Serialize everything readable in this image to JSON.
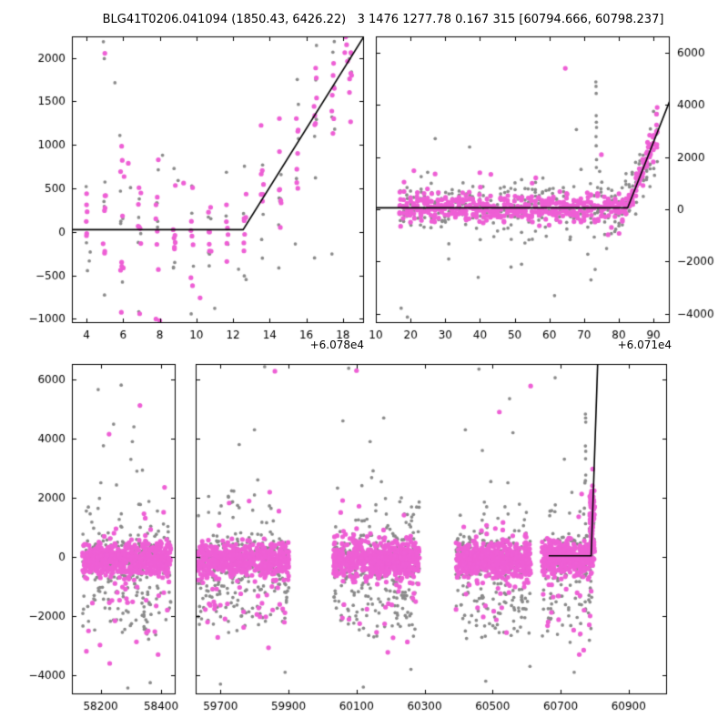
{
  "figure": {
    "title": "BLG41T0206.041094 (1850.43, 6426.22)   3 1476 1277.78 0.167 315 [60794.666, 60798.237]",
    "background": "#ffffff",
    "colors": {
      "points_primary": "#ee5fd5",
      "points_secondary": "#8a8a8a",
      "model_line": "#000000",
      "frame": "#000000"
    },
    "marker_radius": {
      "primary": 2.6,
      "secondary": 1.85
    },
    "offsets": {
      "top_left": "+6.078e4",
      "top_right": "+6.071e4"
    }
  },
  "chart_data": {
    "type": "scatter",
    "title": "BLG41T0206.041094 (1850.43, 6426.22)   3 1476 1277.78 0.167 315 [60794.666, 60798.237]",
    "seed": 11,
    "series": [
      {
        "name": "flux-primary",
        "color": "#ee5fd5"
      },
      {
        "name": "flux-secondary",
        "color": "#8a8a8a"
      },
      {
        "name": "broken-line-model",
        "color": "#000000"
      }
    ],
    "season_mix": {
      "m": [
        [
          0.9,
          -80,
          300
        ],
        [
          0.1,
          -700,
          1050
        ]
      ],
      "g": [
        [
          0.55,
          -30,
          360
        ],
        [
          0.3,
          -1450,
          650
        ],
        [
          0.15,
          800,
          1050
        ]
      ]
    },
    "panels": [
      {
        "id": "top-left-zoom",
        "frame": [
          79,
          40,
          400,
          355
        ],
        "xlim": [
          60783.2,
          60799.15
        ],
        "ylim": [
          -1049,
          2246
        ],
        "xticks": {
          "values": [
            60784,
            60786,
            60788,
            60790,
            60792,
            60794,
            60796,
            60798
          ],
          "labels": [
            "4",
            "6",
            "8",
            "10",
            "12",
            "14",
            "16",
            "18"
          ]
        },
        "yticks": {
          "values": [
            -1000,
            -500,
            0,
            500,
            1000,
            1500,
            2000
          ],
          "labels": [
            "−1000",
            "−500",
            "0",
            "500",
            "1000",
            "1500",
            "2000"
          ],
          "side": "left"
        },
        "model": [
          [
            60783.2,
            25
          ],
          [
            60792.55,
            25
          ],
          [
            60799.15,
            2246
          ]
        ],
        "clusters": [
          {
            "mode": "nights",
            "x0": 60783.05,
            "x1": 60798.45,
            "step": 0.96,
            "xjit": 0.08,
            "n_m": 7,
            "n_g": 5,
            "sig_m": 300,
            "sig_g": 430,
            "follow": true,
            "out_p": 0.07,
            "out_mult": 3.0
          }
        ],
        "extras": [
          [
            60784.92,
            2185,
            "g"
          ],
          [
            60785.0,
            2052,
            "m"
          ],
          [
            60784.97,
            1990,
            "g"
          ],
          [
            60785.55,
            1713,
            "g"
          ],
          [
            60785.82,
            1108,
            "g"
          ],
          [
            60785.95,
            822,
            "m"
          ],
          [
            60786.28,
            788,
            "m"
          ],
          [
            60787.92,
            828,
            "m"
          ],
          [
            60788.15,
            880,
            "g"
          ],
          [
            60786.05,
            635,
            "m"
          ],
          [
            60786.4,
            508,
            "g"
          ],
          [
            60789.0,
            590,
            "g"
          ],
          [
            60789.3,
            560,
            "m"
          ],
          [
            60783.05,
            238,
            "m"
          ],
          [
            60783.1,
            -668,
            "m"
          ],
          [
            60783.08,
            -872,
            "m"
          ],
          [
            60783.12,
            -1012,
            "m"
          ],
          [
            60785.9,
            -925,
            "m"
          ],
          [
            60786.9,
            -942,
            "m"
          ],
          [
            60784.2,
            -232,
            "g"
          ],
          [
            60784.15,
            -335,
            "g"
          ],
          [
            60788.0,
            -1020,
            "m"
          ],
          [
            60791.0,
            -880,
            "g"
          ],
          [
            60790.2,
            -760,
            "m"
          ],
          [
            60792.3,
            -430,
            "g"
          ],
          [
            60794.5,
            -415,
            "g"
          ],
          [
            60796.45,
            -300,
            "g"
          ],
          [
            60797.4,
            -255,
            "g"
          ],
          [
            60795.4,
            -140,
            "g"
          ],
          [
            60796.5,
            620,
            "g"
          ],
          [
            60798.15,
            2240,
            "m"
          ],
          [
            60798.2,
            2150,
            "m"
          ],
          [
            60798.1,
            2060,
            "m"
          ],
          [
            60798.25,
            1960,
            "m"
          ],
          [
            60797.5,
            1300,
            "m"
          ],
          [
            60797.55,
            1180,
            "g"
          ]
        ]
      },
      {
        "id": "top-right-season",
        "frame": [
          413,
          40,
          736,
          355
        ],
        "xlim": [
          60720,
          60804.7
        ],
        "ylim": [
          -4348,
          6609
        ],
        "xticks": {
          "values": [
            60720,
            60730,
            60740,
            60750,
            60760,
            60770,
            60780,
            60790,
            60800
          ],
          "labels": [
            "10",
            "20",
            "30",
            "40",
            "50",
            "60",
            "70",
            "80",
            "90"
          ]
        },
        "yticks": {
          "values": [
            -4000,
            -2000,
            0,
            2000,
            4000,
            6000
          ],
          "labels": [
            "−4000",
            "−2000",
            "0",
            "2000",
            "4000",
            "6000"
          ],
          "side": "right"
        },
        "model": [
          [
            60720,
            55
          ],
          [
            60792.55,
            55
          ],
          [
            60804.7,
            4150
          ]
        ],
        "clusters": [
          {
            "mode": "nights",
            "x0": 60727.0,
            "x1": 60801.0,
            "step": 1.0,
            "xjit": 0.15,
            "n_m": 7,
            "n_g": 5,
            "sig_m": 270,
            "sig_g": 520,
            "follow": true,
            "out_p": 0.06,
            "out_mult": 3.2
          }
        ],
        "extras": [
          [
            60774.6,
            5390,
            "m"
          ],
          [
            60783.4,
            4870,
            "g"
          ],
          [
            60783.45,
            4700,
            "g"
          ],
          [
            60783.5,
            4430,
            "g"
          ],
          [
            60783.5,
            3580,
            "g"
          ],
          [
            60783.55,
            3330,
            "g"
          ],
          [
            60783.6,
            3130,
            "g"
          ],
          [
            60783.45,
            2780,
            "g"
          ],
          [
            60783.5,
            2430,
            "g"
          ],
          [
            60783.6,
            1900,
            "g"
          ],
          [
            60783.55,
            1600,
            "g"
          ],
          [
            60785.0,
            2090,
            "m"
          ],
          [
            60784.5,
            1450,
            "g"
          ],
          [
            60727.3,
            -3780,
            "g"
          ],
          [
            60729.1,
            -4120,
            "g"
          ],
          [
            60749.5,
            -2600,
            "g"
          ],
          [
            60771.5,
            -3300,
            "g"
          ],
          [
            60782.0,
            -2700,
            "g"
          ],
          [
            60783.2,
            -2300,
            "g"
          ],
          [
            60786.5,
            -1500,
            "g"
          ],
          [
            60762.0,
            -2100,
            "g"
          ],
          [
            60741.0,
            -1900,
            "g"
          ],
          [
            60798.3,
            2560,
            "m"
          ],
          [
            60798.5,
            2380,
            "m"
          ],
          [
            60798.2,
            2200,
            "m"
          ],
          [
            60799.0,
            870,
            "g"
          ],
          [
            60800.3,
            1300,
            "g"
          ],
          [
            60795.5,
            1020,
            "m"
          ],
          [
            60777.8,
            3050,
            "g"
          ]
        ]
      },
      {
        "id": "bottom-left-history",
        "frame": [
          79,
          400,
          193,
          763
        ],
        "xlim": [
          58105,
          58448
        ],
        "ylim": [
          -4646,
          6523
        ],
        "xticks": {
          "values": [
            58200,
            58400
          ],
          "labels": [
            "58200",
            "58400"
          ]
        },
        "yticks": {
          "values": [
            -4000,
            -2000,
            0,
            2000,
            4000,
            6000
          ],
          "labels": [
            "−4000",
            "−2000",
            "0",
            "2000",
            "4000",
            "6000"
          ],
          "side": "left"
        },
        "model": [],
        "clusters": [
          {
            "mode": "season",
            "x0": 58140,
            "x1": 58432,
            "n_m": 560,
            "n_g": 340
          }
        ],
        "extras": [
          [
            58192,
            5660,
            "g"
          ],
          [
            58268,
            5810,
            "g"
          ],
          [
            58228,
            4150,
            "m"
          ],
          [
            58243,
            4490,
            "g"
          ],
          [
            58330,
            5120,
            "m"
          ],
          [
            58310,
            4400,
            "g"
          ],
          [
            58305,
            3900,
            "g"
          ],
          [
            58300,
            3300,
            "g"
          ],
          [
            58320,
            2900,
            "g"
          ],
          [
            58364,
            -4250,
            "g"
          ],
          [
            58290,
            -4430,
            "g"
          ],
          [
            58230,
            -3600,
            "m"
          ],
          [
            58390,
            -3300,
            "m"
          ],
          [
            58160,
            -2500,
            "m"
          ]
        ]
      },
      {
        "id": "bottom-right-history",
        "frame": [
          215,
          400,
          733,
          763
        ],
        "xlim": [
          59627,
          61013
        ],
        "ylim": [
          -4646,
          6523
        ],
        "xticks": {
          "values": [
            59700,
            59900,
            60100,
            60300,
            60500,
            60700,
            60900
          ],
          "labels": [
            "59700",
            "59900",
            "60100",
            "60300",
            "60500",
            "60700",
            "60900"
          ]
        },
        "yticks": {
          "values": [
            -4000,
            -2000,
            0,
            2000,
            4000,
            6000
          ],
          "labels": [],
          "side": "none"
        },
        "model": [
          [
            60665,
            40
          ],
          [
            60790,
            40
          ],
          [
            60809,
            6520
          ]
        ],
        "clusters": [
          {
            "mode": "season",
            "x0": 59632,
            "x1": 59902,
            "n_m": 560,
            "n_g": 340
          },
          {
            "mode": "season",
            "x0": 60032,
            "x1": 60285,
            "n_m": 600,
            "n_g": 360
          },
          {
            "mode": "season",
            "x0": 60392,
            "x1": 60612,
            "n_m": 540,
            "n_g": 330
          },
          {
            "mode": "season",
            "x0": 60645,
            "x1": 60790,
            "n_m": 340,
            "n_g": 200
          },
          {
            "mode": "season",
            "x0": 60786,
            "x1": 60800,
            "n_m": 90,
            "n_g": 20,
            "m_mix": [
              [
                0.8,
                1200,
                650
              ],
              [
                0.2,
                300,
                350
              ]
            ],
            "g_mix": [
              [
                1.0,
                900,
                900
              ]
            ]
          }
        ],
        "extras": [
          [
            59860,
            6280,
            "m"
          ],
          [
            59830,
            6430,
            "g"
          ],
          [
            60077,
            6380,
            "g"
          ],
          [
            60100,
            6300,
            "m"
          ],
          [
            60612,
            5780,
            "m"
          ],
          [
            60550,
            5350,
            "g"
          ],
          [
            60684,
            6060,
            "g"
          ],
          [
            60460,
            6350,
            "g"
          ],
          [
            60773,
            4830,
            "g"
          ],
          [
            60773.5,
            4700,
            "g"
          ],
          [
            60774,
            4560,
            "g"
          ],
          [
            60773,
            3750,
            "g"
          ],
          [
            60774,
            3570,
            "g"
          ],
          [
            60773.5,
            3320,
            "g"
          ],
          [
            60774,
            2770,
            "g"
          ],
          [
            60773,
            2580,
            "g"
          ],
          [
            60762,
            2130,
            "m"
          ],
          [
            60770,
            1650,
            "g"
          ],
          [
            60768,
            1450,
            "g"
          ],
          [
            59800,
            4300,
            "g"
          ],
          [
            59755,
            3800,
            "g"
          ],
          [
            60060,
            4600,
            "g"
          ],
          [
            60140,
            3900,
            "g"
          ],
          [
            60180,
            4700,
            "g"
          ],
          [
            60420,
            4300,
            "g"
          ],
          [
            60470,
            3600,
            "g"
          ],
          [
            60520,
            4900,
            "m"
          ],
          [
            60560,
            4200,
            "g"
          ],
          [
            59700,
            -4300,
            "g"
          ],
          [
            59890,
            -3900,
            "g"
          ],
          [
            60120,
            -4400,
            "g"
          ],
          [
            60260,
            -3800,
            "g"
          ],
          [
            60480,
            -4200,
            "g"
          ],
          [
            60610,
            -3700,
            "g"
          ],
          [
            60740,
            -3900,
            "g"
          ],
          [
            60755,
            -3300,
            "m"
          ],
          [
            60758,
            -2600,
            "m"
          ]
        ]
      }
    ]
  }
}
